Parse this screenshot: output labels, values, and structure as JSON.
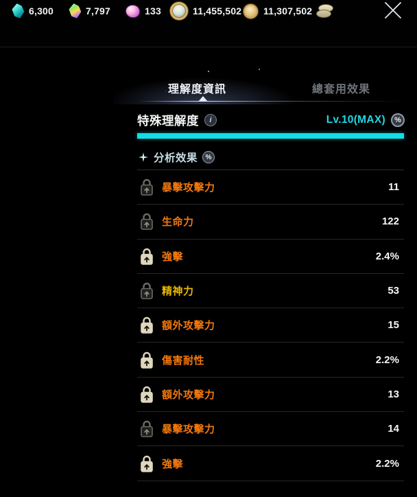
{
  "topbar": {
    "currencies": [
      {
        "icon": "crystal-teal",
        "value": "6,300"
      },
      {
        "icon": "crystal-rainbow",
        "value": "7,797"
      },
      {
        "icon": "gem-pink",
        "value": "133"
      },
      {
        "icon": "ring-gold",
        "value": "11,455,502"
      },
      {
        "icon": "coin-gold",
        "value": "11,307,502"
      },
      {
        "icon": "coin-stack",
        "value": ""
      }
    ]
  },
  "tabs": [
    {
      "label": "理解度資訊",
      "active": true
    },
    {
      "label": "總套用效果",
      "active": false
    }
  ],
  "panel": {
    "title": "特殊理解度",
    "level": "Lv.10(MAX)",
    "progress_percent": 100,
    "section_title": "分析效果",
    "stats": [
      {
        "name": "暴擊攻擊力",
        "value": "11",
        "color": "orange",
        "lock": "dim"
      },
      {
        "name": "生命力",
        "value": "122",
        "color": "orange",
        "lock": "dim"
      },
      {
        "name": "強擊",
        "value": "2.4%",
        "color": "orange",
        "lock": "bright"
      },
      {
        "name": "精神力",
        "value": "53",
        "color": "yellow",
        "lock": "dim"
      },
      {
        "name": "額外攻擊力",
        "value": "15",
        "color": "orange",
        "lock": "bright"
      },
      {
        "name": "傷害耐性",
        "value": "2.2%",
        "color": "orange",
        "lock": "bright"
      },
      {
        "name": "額外攻擊力",
        "value": "13",
        "color": "orange",
        "lock": "bright"
      },
      {
        "name": "暴擊攻擊力",
        "value": "14",
        "color": "orange",
        "lock": "dim"
      },
      {
        "name": "強擊",
        "value": "2.2%",
        "color": "orange",
        "lock": "bright"
      }
    ]
  },
  "icons": {
    "info": "i",
    "percent": "%"
  },
  "colors": {
    "accent_cyan": "#12dfe6",
    "level_cyan": "#1fd8e4",
    "stat_orange": "#f2780c",
    "stat_yellow": "#e7b800"
  }
}
